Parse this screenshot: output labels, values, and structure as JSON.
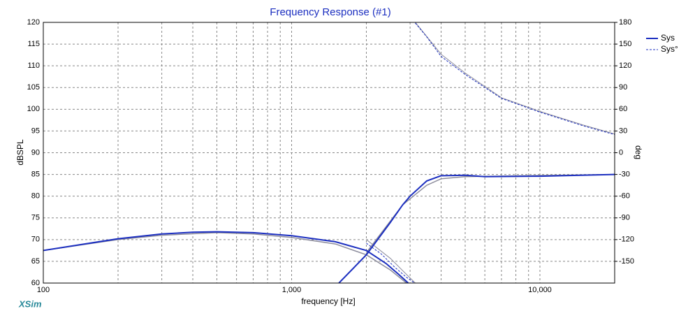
{
  "chart_data": {
    "type": "line",
    "title": "Frequency Response (#1)",
    "x_label": "frequency [Hz]",
    "y_label": "dBSPL",
    "y2_label": "deg",
    "brand": "XSim",
    "log_x": true,
    "grid": true,
    "legend": "top-right",
    "xlim": [
      100,
      20000
    ],
    "xticks": [
      100,
      {
        "value": 1000,
        "label": "1,000"
      },
      {
        "value": 10000,
        "label": "10,000"
      }
    ],
    "ylim": [
      60,
      120
    ],
    "yticks": [
      60,
      65,
      70,
      75,
      80,
      85,
      90,
      95,
      100,
      105,
      110,
      115,
      120
    ],
    "y2lim": [
      -180,
      180
    ],
    "y2ticks": [
      -150,
      -120,
      -90,
      -60,
      -30,
      0,
      30,
      60,
      90,
      120,
      150,
      180
    ],
    "series": [
      {
        "x": [
          100,
          200,
          300,
          500,
          700,
          1000,
          1500,
          2000,
          2500,
          2900,
          null,
          2000,
          2800,
          3500,
          4000,
          5000,
          20000
        ],
        "values": [
          67.5,
          70,
          71,
          71.6,
          71.3,
          70.5,
          69,
          66.5,
          63,
          60,
          null,
          67,
          78,
          82.5,
          84,
          84.5,
          85
        ],
        "color": "#8c8c9c",
        "dash": false,
        "axis": "y",
        "width": 1.5
      },
      {
        "x": [
          2000,
          2500,
          2900,
          3150,
          null,
          3150,
          4000,
          5000,
          7000,
          10000,
          15000,
          20000
        ],
        "values": [
          -120,
          -146,
          -168,
          -180,
          null,
          180,
          136,
          110,
          76,
          57,
          38,
          26
        ],
        "color": "#8c8c9c",
        "dash": false,
        "axis": "y2",
        "width": 1
      },
      {
        "name": "Sys",
        "x": [
          100,
          200,
          300,
          400,
          500,
          700,
          1000,
          1500,
          2000,
          2400,
          2700,
          2950,
          null,
          1550,
          2000,
          2500,
          2800,
          3000,
          3500,
          4000,
          5000,
          6000,
          10000,
          20000
        ],
        "values": [
          67.5,
          70.2,
          71.3,
          71.7,
          71.8,
          71.6,
          70.9,
          69.5,
          67.5,
          64.5,
          62,
          60,
          null,
          60,
          66.5,
          74,
          78,
          80,
          83.5,
          84.7,
          84.8,
          84.5,
          84.6,
          85
        ],
        "color": "#1c2fc0",
        "dash": false,
        "axis": "y",
        "width": 2
      },
      {
        "name": "Sys°",
        "x": [
          2000,
          2300,
          2600,
          2900,
          3100,
          null,
          3150,
          3500,
          4000,
          5000,
          7000,
          10000,
          15000,
          20000
        ],
        "values": [
          -125,
          -140,
          -158,
          -172,
          -179,
          null,
          179,
          160,
          133,
          108,
          75,
          56,
          37,
          25
        ],
        "color": "#1c2fc0",
        "dash": true,
        "axis": "y2",
        "width": 1
      }
    ]
  }
}
